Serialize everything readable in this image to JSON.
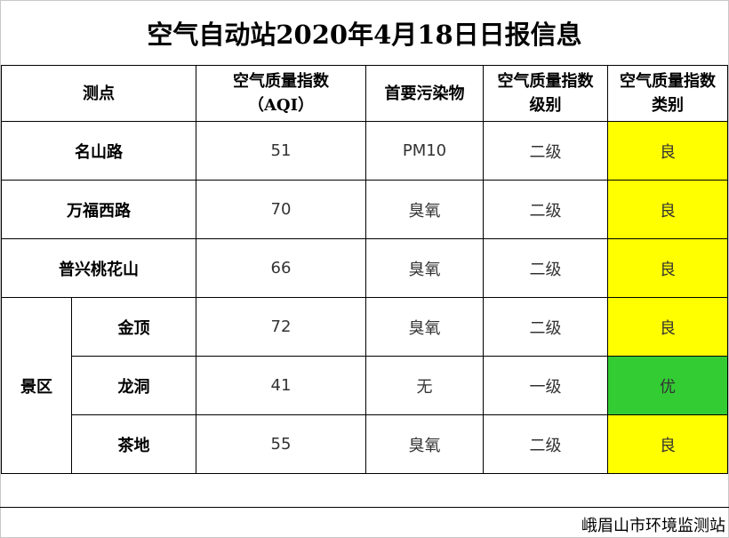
{
  "title": "空气自动站2020年4月18日日报信息",
  "headers": {
    "site": "测点",
    "aqi_line1": "空气质量指数",
    "aqi_line2": "（AQI）",
    "pollutant": "首要污染物",
    "level_line1": "空气质量指数",
    "level_line2": "级别",
    "category_line1": "空气质量指数",
    "category_line2": "类别"
  },
  "rows": [
    {
      "site": "名山路",
      "aqi": "51",
      "pollutant": "PM10",
      "level": "二级",
      "category": "良",
      "color": "#ffff00"
    },
    {
      "site": "万福西路",
      "aqi": "70",
      "pollutant": "臭氧",
      "level": "二级",
      "category": "良",
      "color": "#ffff00"
    },
    {
      "site": "普兴桃花山",
      "aqi": "66",
      "pollutant": "臭氧",
      "level": "二级",
      "category": "良",
      "color": "#ffff00"
    }
  ],
  "scenic": {
    "group_label": "景区",
    "rows": [
      {
        "site": "金顶",
        "aqi": "72",
        "pollutant": "臭氧",
        "level": "二级",
        "category": "良",
        "color": "#ffff00"
      },
      {
        "site": "龙洞",
        "aqi": "41",
        "pollutant": "无",
        "level": "一级",
        "category": "优",
        "color": "#33cc33"
      },
      {
        "site": "茶地",
        "aqi": "55",
        "pollutant": "臭氧",
        "level": "二级",
        "category": "良",
        "color": "#ffff00"
      }
    ]
  },
  "footer": "峨眉山市环境监测站"
}
